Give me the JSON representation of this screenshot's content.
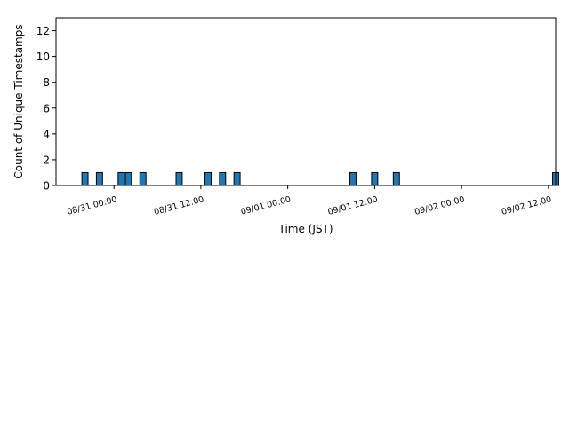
{
  "chart_data": {
    "type": "bar",
    "title": "",
    "xlabel": "Time (JST)",
    "ylabel": "Count of Unique Timestamps",
    "x_tick_labels": [
      "08/31 00:00",
      "08/31 12:00",
      "09/01 00:00",
      "09/01 12:00",
      "09/02 00:00",
      "09/02 12:00"
    ],
    "x_ticks": [
      "2023-08-31T00:00",
      "2023-08-31T12:00",
      "2023-09-01T00:00",
      "2023-09-01T12:00",
      "2023-09-02T00:00",
      "2023-09-02T12:00"
    ],
    "y_ticks": [
      0,
      2,
      4,
      6,
      8,
      10,
      12
    ],
    "ylim": [
      0,
      13
    ],
    "xlim": [
      "2023-08-30T16:00",
      "2023-09-02T13:00"
    ],
    "bar_width_hours": 1,
    "bars": [
      {
        "time": "2023-08-30T20:00",
        "count": 1
      },
      {
        "time": "2023-08-30T22:00",
        "count": 1
      },
      {
        "time": "2023-08-31T01:00",
        "count": 1
      },
      {
        "time": "2023-08-31T02:00",
        "count": 1
      },
      {
        "time": "2023-08-31T04:00",
        "count": 1
      },
      {
        "time": "2023-08-31T09:00",
        "count": 1
      },
      {
        "time": "2023-08-31T13:00",
        "count": 1
      },
      {
        "time": "2023-08-31T15:00",
        "count": 1
      },
      {
        "time": "2023-08-31T17:00",
        "count": 1
      },
      {
        "time": "2023-09-01T09:00",
        "count": 1
      },
      {
        "time": "2023-09-01T12:00",
        "count": 1
      },
      {
        "time": "2023-09-01T15:00",
        "count": 1
      },
      {
        "time": "2023-09-02T13:00",
        "count": 1
      }
    ],
    "bar_color": "#1f77b4",
    "edge_color": "#000000",
    "grid": false,
    "legend": "none"
  }
}
